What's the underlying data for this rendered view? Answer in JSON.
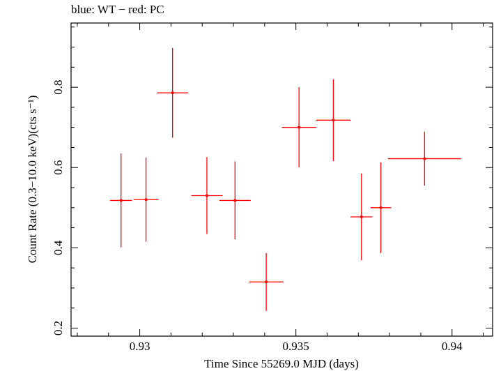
{
  "chart_data": {
    "type": "scatter",
    "title": "blue: WT − red: PC",
    "xlabel": "Time Since 55269.0 MJD (days)",
    "ylabel": "Count Rate (0.3−10.0 keV)(cts s⁻¹)",
    "xlim": [
      0.9278,
      0.9413
    ],
    "ylim": [
      0.18,
      0.96
    ],
    "xticks": [
      0.93,
      0.935,
      0.94
    ],
    "xtick_labels": [
      "0.93",
      "0.935",
      "0.94"
    ],
    "yticks": [
      0.2,
      0.4,
      0.6,
      0.8
    ],
    "ytick_labels": [
      "0.2",
      "0.4",
      "0.6",
      "0.8"
    ],
    "grid": false,
    "series": [
      {
        "color": "#ff0000",
        "points": [
          {
            "x": 0.9294,
            "y": 0.518,
            "xerr": 0.00035,
            "yerr": 0.117
          },
          {
            "x": 0.9302,
            "y": 0.52,
            "xerr": 0.0004,
            "yerr": 0.105
          },
          {
            "x": 0.93105,
            "y": 0.786,
            "xerr": 0.0005,
            "yerr": 0.112
          },
          {
            "x": 0.93215,
            "y": 0.53,
            "xerr": 0.0005,
            "yerr": 0.096
          },
          {
            "x": 0.93305,
            "y": 0.518,
            "xerr": 0.0005,
            "yerr": 0.097
          },
          {
            "x": 0.93405,
            "y": 0.315,
            "xerr": 0.00055,
            "yerr": 0.072
          },
          {
            "x": 0.9351,
            "y": 0.7,
            "xerr": 0.00055,
            "yerr": 0.1
          },
          {
            "x": 0.9362,
            "y": 0.718,
            "xerr": 0.00055,
            "yerr": 0.102
          },
          {
            "x": 0.9371,
            "y": 0.477,
            "xerr": 0.00035,
            "yerr": 0.108
          },
          {
            "x": 0.93772,
            "y": 0.5,
            "xerr": 0.00033,
            "yerr": 0.113
          },
          {
            "x": 0.93912,
            "y": 0.622,
            "xerr": 0.00117,
            "yerr": 0.067
          }
        ]
      }
    ]
  }
}
